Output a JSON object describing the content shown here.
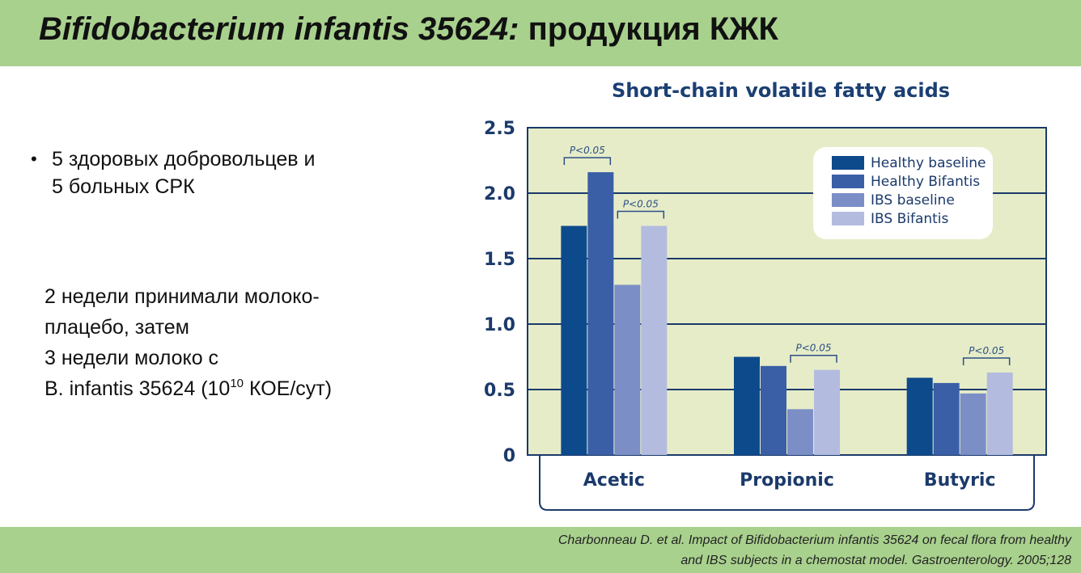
{
  "slide": {
    "title_italic": "Bifidobacterium infantis 35624:",
    "title_rest": " продукция КЖК",
    "bullet": {
      "marker": "•",
      "lines": [
        "5 здоровых добровольцев и",
        "5 больных СРК"
      ]
    },
    "description": {
      "line1": "2 недели принимали молоко-",
      "line2": "плацебо, затем",
      "line3": "3 недели молоко с",
      "line4_pre": "B. infantis 35624 (10",
      "line4_sup": "10",
      "line4_post": " КОЕ/сут)"
    },
    "citation": {
      "line1": "Charbonneau D. et al. Impact of Bifidobacterium infantis 35624 on fecal flora from healthy",
      "line2": "and IBS subjects in a chemostat model. Gastroenterology. 2005;128"
    }
  },
  "chart_data": {
    "type": "bar",
    "title": "Short-chain volatile fatty acids",
    "categories": [
      "Acetic",
      "Propionic",
      "Butyric"
    ],
    "ylim": [
      0,
      2.5
    ],
    "yticks": [
      0,
      0.5,
      1.0,
      1.5,
      2.0,
      2.5
    ],
    "ytick_labels": [
      "0",
      "0.5",
      "1.0",
      "1.5",
      "2.0",
      "2.5"
    ],
    "grid": true,
    "legend_position": "top-right",
    "series": [
      {
        "name": "Healthy baseline",
        "color": "#0d4a8c",
        "values": [
          1.75,
          0.75,
          0.59
        ]
      },
      {
        "name": "Healthy Bifantis",
        "color": "#3a5fa6",
        "values": [
          2.16,
          0.68,
          0.55
        ]
      },
      {
        "name": "IBS baseline",
        "color": "#7b8fc6",
        "values": [
          1.3,
          0.35,
          0.47
        ]
      },
      {
        "name": "IBS Bifantis",
        "color": "#b3bcdf",
        "values": [
          1.75,
          0.65,
          0.63
        ]
      }
    ],
    "annotations": [
      {
        "text": "P<0.05",
        "category_index": 0,
        "from_series": 0,
        "to_series": 1
      },
      {
        "text": "P<0.05",
        "category_index": 0,
        "from_series": 2,
        "to_series": 3
      },
      {
        "text": "P<0.05",
        "category_index": 1,
        "from_series": 2,
        "to_series": 3
      },
      {
        "text": "P<0.05",
        "category_index": 2,
        "from_series": 2,
        "to_series": 3
      }
    ],
    "colors": {
      "background": "#e6ecc8",
      "axis": "#1b3a6b",
      "title": "#1b3f73"
    }
  }
}
